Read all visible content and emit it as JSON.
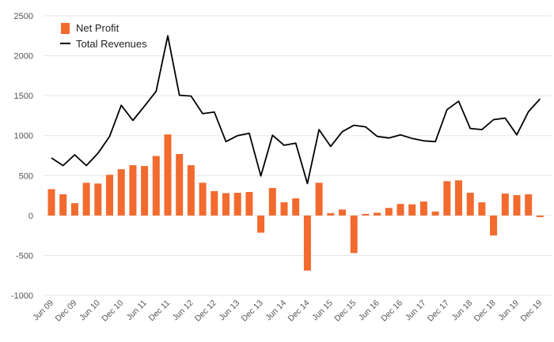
{
  "chart_data": {
    "type": "bar",
    "title": "",
    "xlabel": "",
    "ylabel": "",
    "ylim": [
      -1000,
      2500
    ],
    "yticks": [
      2500,
      2000,
      1500,
      1000,
      500,
      0,
      -500,
      -1000
    ],
    "grid": true,
    "legend": "top-left",
    "colors": {
      "bar": "#f26a2e",
      "line": "#000000",
      "grid": "#e6e6e6"
    },
    "categories": [
      "Jun 09",
      "Sep 09",
      "Dec 09",
      "Mar 10",
      "Jun 10",
      "Sep 10",
      "Dec 10",
      "Mar 11",
      "Jun 11",
      "Sep 11",
      "Dec 11",
      "Mar 12",
      "Jun 12",
      "Sep 12",
      "Dec 12",
      "Mar 13",
      "Jun 13",
      "Sep 13",
      "Dec 13",
      "Mar 14",
      "Jun 14",
      "Sep 14",
      "Dec 14",
      "Mar 15",
      "Jun 15",
      "Sep 15",
      "Dec 15",
      "Mar 16",
      "Jun 16",
      "Sep 16",
      "Dec 16",
      "Mar 17",
      "Jun 17",
      "Sep 17",
      "Dec 17",
      "Mar 18",
      "Jun 18",
      "Sep 18",
      "Dec 18",
      "Mar 19",
      "Jun 19",
      "Sep 19",
      "Dec 19"
    ],
    "tick_labels": [
      "Jun 09",
      "Dec 09",
      "Jun 10",
      "Dec 10",
      "Jun 11",
      "Dec 11",
      "Jun 12",
      "Dec 12",
      "Jun 13",
      "Dec 13",
      "Jun 14",
      "Dec 14",
      "Jun 15",
      "Dec 15",
      "Jun 16",
      "Dec 16",
      "Jun 17",
      "Dec 17",
      "Jun 18",
      "Dec 18",
      "Jun 19",
      "Dec 19"
    ],
    "series": [
      {
        "name": "Net Profit",
        "type": "bar",
        "values": [
          330,
          265,
          155,
          410,
          400,
          510,
          580,
          630,
          620,
          745,
          1015,
          770,
          630,
          410,
          305,
          280,
          285,
          295,
          -215,
          345,
          165,
          215,
          -690,
          410,
          30,
          75,
          -470,
          20,
          35,
          95,
          145,
          140,
          175,
          50,
          430,
          440,
          285,
          165,
          -250,
          275,
          255,
          265,
          -20
        ]
      },
      {
        "name": "Total Revenues",
        "type": "line",
        "values": [
          720,
          625,
          760,
          625,
          780,
          990,
          1380,
          1190,
          1370,
          1555,
          2250,
          1505,
          1495,
          1275,
          1295,
          925,
          1000,
          1030,
          495,
          1005,
          880,
          905,
          400,
          1075,
          865,
          1050,
          1130,
          1110,
          990,
          970,
          1010,
          965,
          935,
          925,
          1325,
          1430,
          1090,
          1075,
          1200,
          1220,
          1010,
          1300,
          1460
        ]
      }
    ]
  }
}
